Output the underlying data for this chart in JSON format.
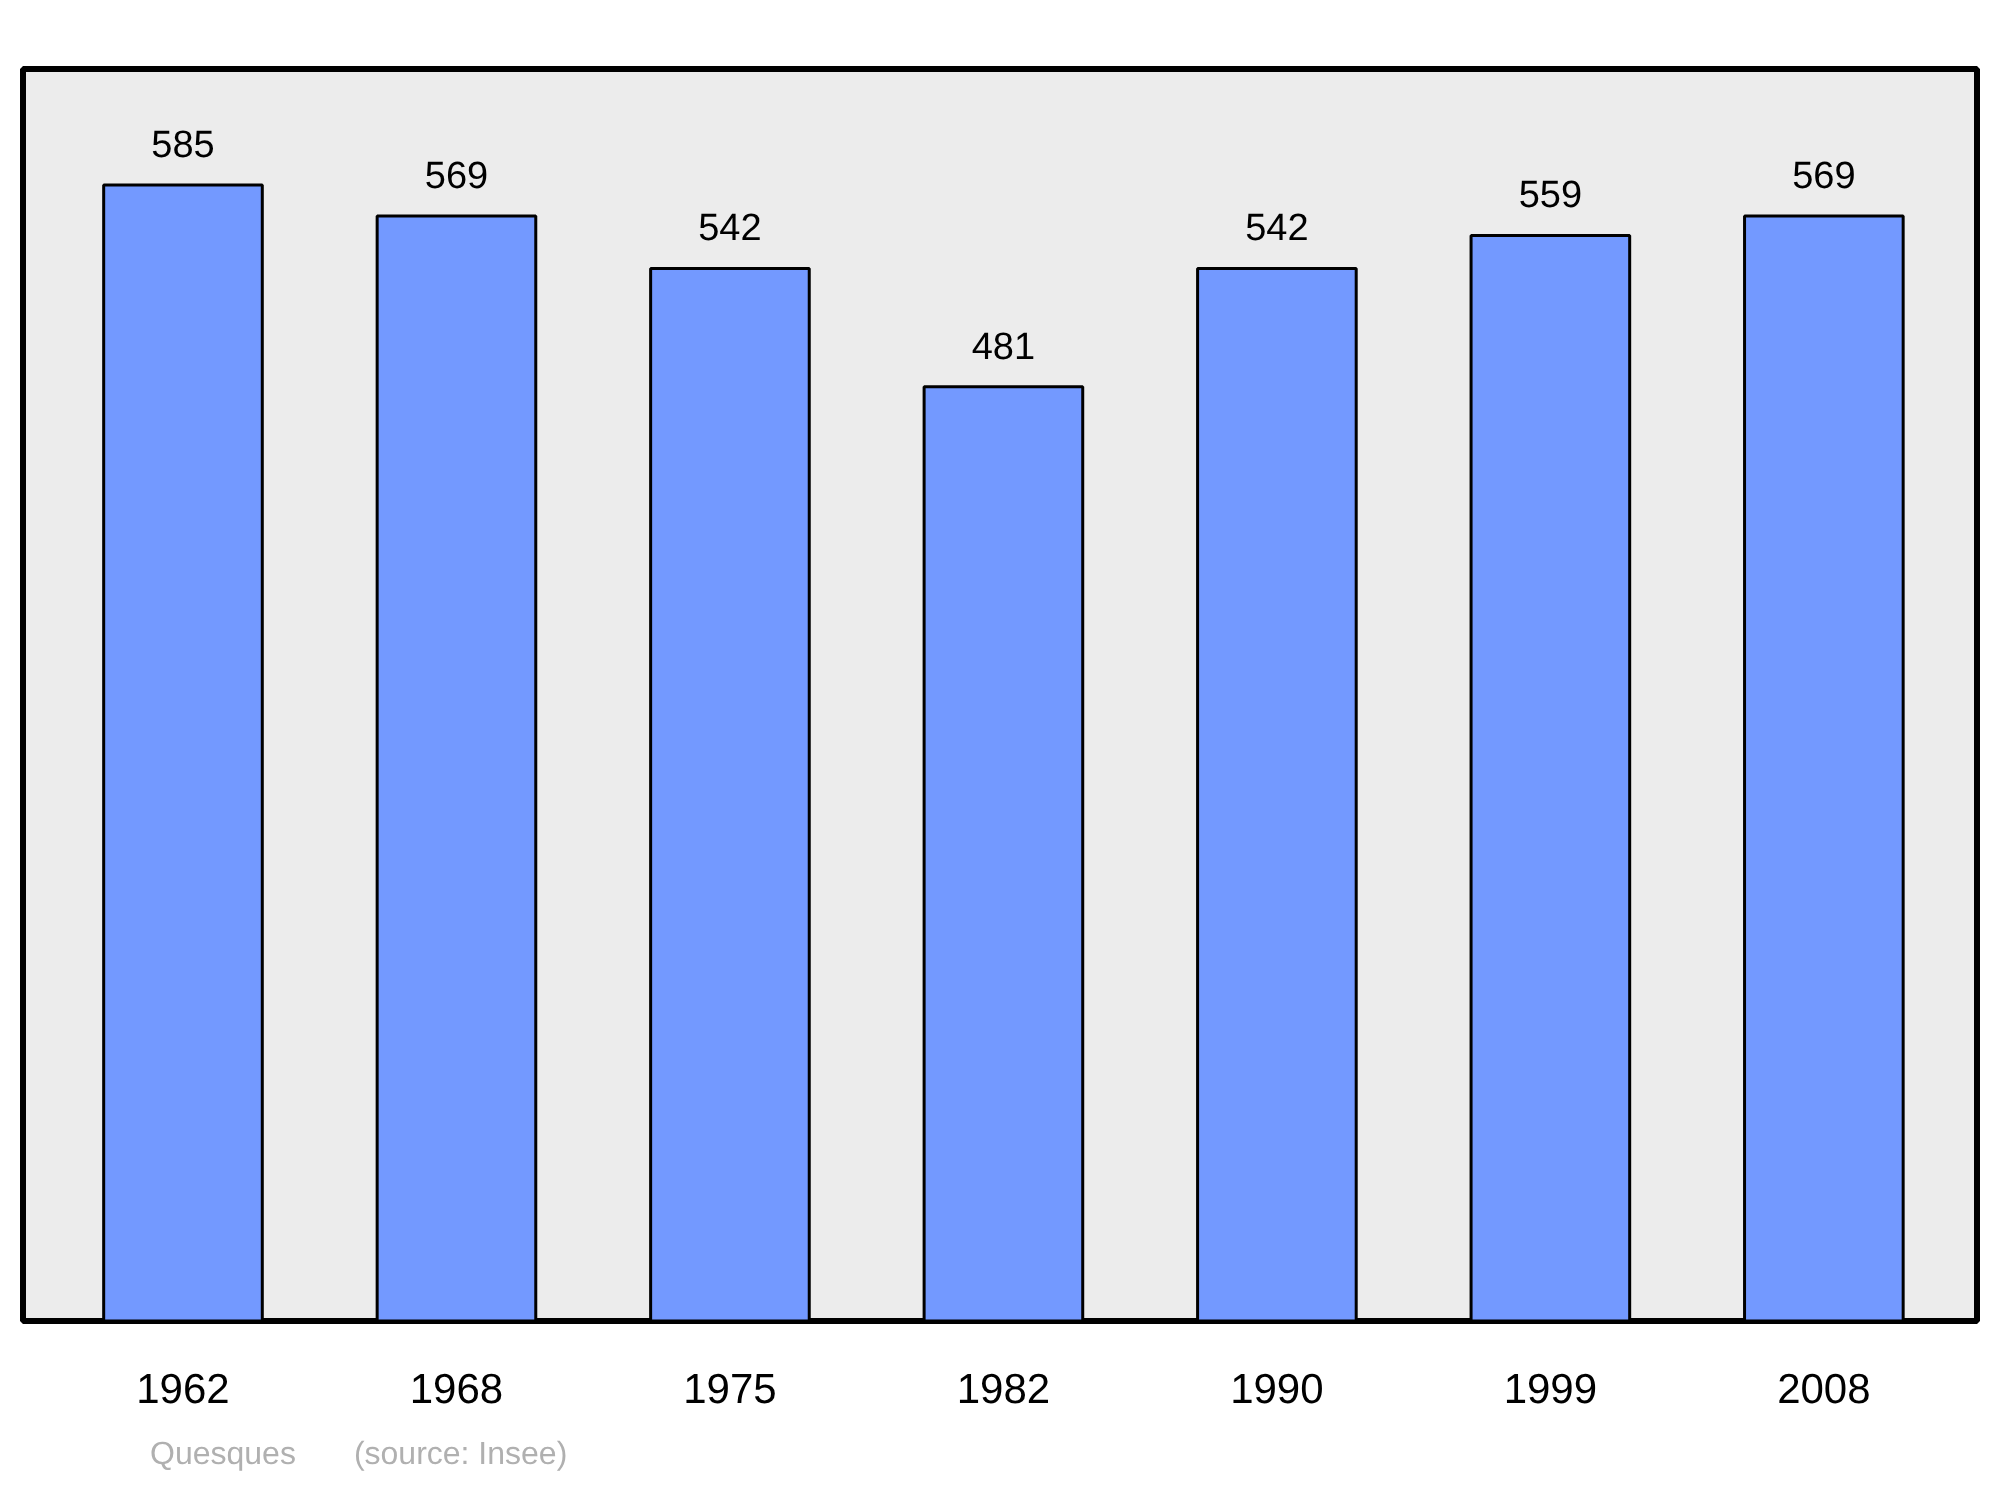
{
  "chart_data": {
    "type": "bar",
    "categories": [
      "1962",
      "1968",
      "1975",
      "1982",
      "1990",
      "1999",
      "2008"
    ],
    "values": [
      585,
      569,
      542,
      481,
      542,
      559,
      569
    ],
    "color": "#7399ff",
    "data_labels": true,
    "grid": false,
    "annotations": [
      "Quesques",
      "(source: Insee)"
    ]
  }
}
